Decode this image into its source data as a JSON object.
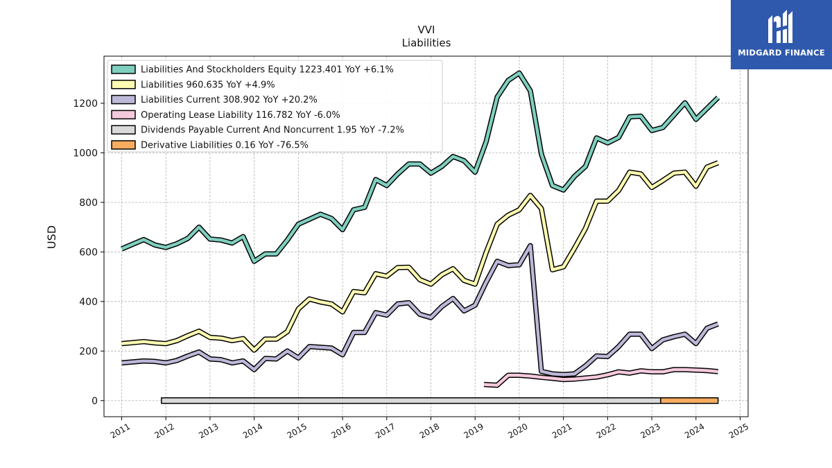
{
  "brand": {
    "name": "MIDGARD FINANCE",
    "bg": "#2f59ad"
  },
  "chart_data": {
    "type": "line",
    "title": "VVI",
    "subtitle": "Liabilities",
    "xlabel": "",
    "ylabel": "USD",
    "xlim": [
      2010.6,
      2025.18
    ],
    "ylim": [
      -65,
      1390
    ],
    "x_ticks": [
      "2011",
      "2012",
      "2013",
      "2014",
      "2015",
      "2016",
      "2017",
      "2018",
      "2019",
      "2020",
      "2021",
      "2022",
      "2023",
      "2024",
      "2025"
    ],
    "y_ticks": [
      0,
      200,
      400,
      600,
      800,
      1000,
      1200
    ],
    "grid": true,
    "legend_position": "top-left",
    "series": [
      {
        "name": "Liabilities And Stockholders Equity  1223.401 YoY +6.1%",
        "color": "#7fcfbf",
        "style": "line",
        "points": [
          [
            2011.0,
            612
          ],
          [
            2011.5,
            650
          ],
          [
            2011.75,
            628
          ],
          [
            2012.0,
            618
          ],
          [
            2012.25,
            633
          ],
          [
            2012.5,
            655
          ],
          [
            2012.75,
            700
          ],
          [
            2013.0,
            652
          ],
          [
            2013.25,
            648
          ],
          [
            2013.5,
            636
          ],
          [
            2013.75,
            662
          ],
          [
            2014.0,
            562
          ],
          [
            2014.25,
            592
          ],
          [
            2014.5,
            592
          ],
          [
            2014.75,
            648
          ],
          [
            2015.0,
            712
          ],
          [
            2015.5,
            752
          ],
          [
            2015.75,
            735
          ],
          [
            2016.0,
            690
          ],
          [
            2016.25,
            770
          ],
          [
            2016.5,
            780
          ],
          [
            2016.75,
            892
          ],
          [
            2017.0,
            868
          ],
          [
            2017.25,
            915
          ],
          [
            2017.5,
            955
          ],
          [
            2017.75,
            955
          ],
          [
            2018.0,
            918
          ],
          [
            2018.25,
            945
          ],
          [
            2018.5,
            985
          ],
          [
            2018.75,
            968
          ],
          [
            2019.0,
            922
          ],
          [
            2019.25,
            1045
          ],
          [
            2019.5,
            1225
          ],
          [
            2019.75,
            1292
          ],
          [
            2020.0,
            1322
          ],
          [
            2020.25,
            1250
          ],
          [
            2020.5,
            995
          ],
          [
            2020.75,
            868
          ],
          [
            2021.0,
            850
          ],
          [
            2021.25,
            905
          ],
          [
            2021.5,
            945
          ],
          [
            2021.75,
            1060
          ],
          [
            2022.0,
            1040
          ],
          [
            2022.25,
            1062
          ],
          [
            2022.5,
            1145
          ],
          [
            2022.75,
            1148
          ],
          [
            2023.0,
            1090
          ],
          [
            2023.25,
            1102
          ],
          [
            2023.75,
            1202
          ],
          [
            2024.0,
            1135
          ],
          [
            2024.5,
            1223
          ]
        ]
      },
      {
        "name": "Liabilities  960.635 YoY +4.9%",
        "color": "#fdfbb2",
        "style": "line",
        "points": [
          [
            2011.0,
            230
          ],
          [
            2011.5,
            238
          ],
          [
            2011.75,
            233
          ],
          [
            2012.0,
            230
          ],
          [
            2012.25,
            242
          ],
          [
            2012.5,
            262
          ],
          [
            2012.75,
            280
          ],
          [
            2013.0,
            255
          ],
          [
            2013.25,
            252
          ],
          [
            2013.5,
            242
          ],
          [
            2013.75,
            250
          ],
          [
            2014.0,
            204
          ],
          [
            2014.25,
            248
          ],
          [
            2014.5,
            248
          ],
          [
            2014.75,
            278
          ],
          [
            2015.0,
            370
          ],
          [
            2015.25,
            410
          ],
          [
            2015.5,
            398
          ],
          [
            2015.75,
            390
          ],
          [
            2016.0,
            358
          ],
          [
            2016.25,
            440
          ],
          [
            2016.5,
            435
          ],
          [
            2016.75,
            512
          ],
          [
            2017.0,
            502
          ],
          [
            2017.25,
            537
          ],
          [
            2017.5,
            538
          ],
          [
            2017.75,
            488
          ],
          [
            2018.0,
            470
          ],
          [
            2018.25,
            508
          ],
          [
            2018.5,
            532
          ],
          [
            2018.75,
            485
          ],
          [
            2019.0,
            470
          ],
          [
            2019.25,
            598
          ],
          [
            2019.5,
            712
          ],
          [
            2019.75,
            748
          ],
          [
            2020.0,
            770
          ],
          [
            2020.25,
            828
          ],
          [
            2020.5,
            775
          ],
          [
            2020.75,
            528
          ],
          [
            2021.0,
            540
          ],
          [
            2021.25,
            615
          ],
          [
            2021.5,
            695
          ],
          [
            2021.75,
            805
          ],
          [
            2022.0,
            805
          ],
          [
            2022.25,
            848
          ],
          [
            2022.5,
            922
          ],
          [
            2022.75,
            915
          ],
          [
            2023.0,
            860
          ],
          [
            2023.25,
            888
          ],
          [
            2023.5,
            918
          ],
          [
            2023.75,
            922
          ],
          [
            2024.0,
            865
          ],
          [
            2024.25,
            942
          ],
          [
            2024.5,
            960
          ]
        ]
      },
      {
        "name": "Liabilities Current  308.902 YoY +20.2%",
        "color": "#bcb8d8",
        "style": "line",
        "points": [
          [
            2011.0,
            152
          ],
          [
            2011.5,
            160
          ],
          [
            2011.75,
            158
          ],
          [
            2012.0,
            152
          ],
          [
            2012.25,
            162
          ],
          [
            2012.5,
            180
          ],
          [
            2012.75,
            196
          ],
          [
            2013.0,
            168
          ],
          [
            2013.25,
            165
          ],
          [
            2013.5,
            152
          ],
          [
            2013.75,
            160
          ],
          [
            2014.0,
            125
          ],
          [
            2014.25,
            170
          ],
          [
            2014.5,
            168
          ],
          [
            2014.75,
            200
          ],
          [
            2015.0,
            172
          ],
          [
            2015.25,
            218
          ],
          [
            2015.5,
            215
          ],
          [
            2015.75,
            212
          ],
          [
            2016.0,
            185
          ],
          [
            2016.25,
            275
          ],
          [
            2016.5,
            275
          ],
          [
            2016.75,
            355
          ],
          [
            2017.0,
            345
          ],
          [
            2017.25,
            390
          ],
          [
            2017.5,
            395
          ],
          [
            2017.75,
            348
          ],
          [
            2018.0,
            335
          ],
          [
            2018.25,
            380
          ],
          [
            2018.5,
            412
          ],
          [
            2018.75,
            362
          ],
          [
            2019.0,
            385
          ],
          [
            2019.25,
            478
          ],
          [
            2019.5,
            562
          ],
          [
            2019.75,
            545
          ],
          [
            2020.0,
            548
          ],
          [
            2020.25,
            625
          ],
          [
            2020.5,
            118
          ],
          [
            2020.75,
            108
          ],
          [
            2021.0,
            105
          ],
          [
            2021.25,
            108
          ],
          [
            2021.5,
            140
          ],
          [
            2021.75,
            180
          ],
          [
            2022.0,
            178
          ],
          [
            2022.25,
            218
          ],
          [
            2022.5,
            268
          ],
          [
            2022.75,
            268
          ],
          [
            2023.0,
            210
          ],
          [
            2023.25,
            245
          ],
          [
            2023.5,
            258
          ],
          [
            2023.75,
            268
          ],
          [
            2024.0,
            230
          ],
          [
            2024.25,
            292
          ],
          [
            2024.5,
            309
          ]
        ]
      },
      {
        "name": "Operating Lease Liability  116.782 YoY -6.0%",
        "color": "#f5c9dc",
        "style": "line",
        "points": [
          [
            2019.2,
            65
          ],
          [
            2019.5,
            62
          ],
          [
            2019.75,
            102
          ],
          [
            2020.0,
            102
          ],
          [
            2020.25,
            99
          ],
          [
            2020.5,
            94
          ],
          [
            2020.75,
            90
          ],
          [
            2021.0,
            85
          ],
          [
            2021.25,
            87
          ],
          [
            2021.5,
            91
          ],
          [
            2021.75,
            95
          ],
          [
            2022.0,
            104
          ],
          [
            2022.25,
            116
          ],
          [
            2022.5,
            111
          ],
          [
            2022.75,
            120
          ],
          [
            2023.0,
            116
          ],
          [
            2023.25,
            116
          ],
          [
            2023.5,
            125
          ],
          [
            2023.75,
            125
          ],
          [
            2024.0,
            123
          ],
          [
            2024.25,
            121
          ],
          [
            2024.5,
            117
          ]
        ]
      },
      {
        "name": "Dividends Payable Current And Noncurrent  1.95 YoY -7.2%",
        "color": "#d9d9d9",
        "style": "band",
        "points": [
          [
            2011.9,
            2.2
          ],
          [
            2012.5,
            2.2
          ],
          [
            2012.75,
            3.0
          ],
          [
            2023.0,
            2.1
          ],
          [
            2024.25,
            1.95
          ]
        ]
      },
      {
        "name": "Derivative Liabilities  0.16 YoY -76.5%",
        "color": "#f7ac60",
        "style": "band",
        "points": [
          [
            2023.2,
            0.7
          ],
          [
            2024.5,
            0.16
          ]
        ]
      }
    ]
  }
}
